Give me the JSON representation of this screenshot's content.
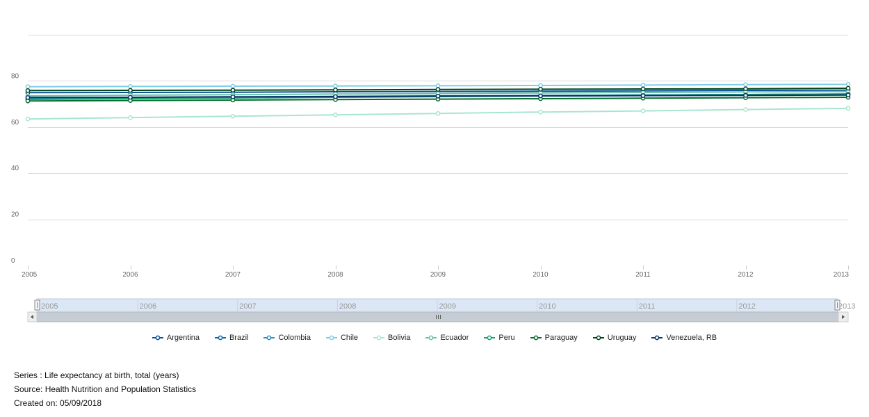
{
  "chart_data": {
    "type": "line",
    "x": [
      "2005",
      "2006",
      "2007",
      "2008",
      "2009",
      "2010",
      "2011",
      "2012",
      "2013"
    ],
    "ylim": [
      0,
      100
    ],
    "yticks": [
      0,
      20,
      40,
      60,
      80
    ],
    "grid": true,
    "legend_position": "bottom",
    "series": [
      {
        "name": "Argentina",
        "color": "#08519c",
        "values": [
          74.9,
          75.0,
          75.1,
          75.3,
          75.4,
          75.5,
          75.7,
          75.9,
          76.0
        ]
      },
      {
        "name": "Brazil",
        "color": "#0868ac",
        "values": [
          72.1,
          72.4,
          72.7,
          73.0,
          73.3,
          73.6,
          73.9,
          74.1,
          74.3
        ]
      },
      {
        "name": "Colombia",
        "color": "#2b8cbe",
        "values": [
          72.6,
          72.8,
          73.0,
          73.3,
          73.5,
          73.7,
          73.9,
          74.1,
          74.3
        ]
      },
      {
        "name": "Chile",
        "color": "#7fcdea",
        "values": [
          77.5,
          77.6,
          77.7,
          77.8,
          77.9,
          78.0,
          78.2,
          78.4,
          78.5
        ]
      },
      {
        "name": "Bolivia",
        "color": "#a8e6cf",
        "values": [
          63.5,
          64.1,
          64.7,
          65.3,
          65.9,
          66.5,
          67.0,
          67.6,
          68.1
        ]
      },
      {
        "name": "Ecuador",
        "color": "#66c2a4",
        "values": [
          73.5,
          73.8,
          74.0,
          74.3,
          74.5,
          74.8,
          75.0,
          75.2,
          75.4
        ]
      },
      {
        "name": "Peru",
        "color": "#1aa16b",
        "values": [
          72.0,
          72.3,
          72.6,
          72.9,
          73.2,
          73.5,
          73.7,
          74.0,
          74.2
        ]
      },
      {
        "name": "Paraguay",
        "color": "#006d2c",
        "values": [
          71.3,
          71.5,
          71.7,
          71.9,
          72.1,
          72.3,
          72.5,
          72.7,
          72.9
        ]
      },
      {
        "name": "Uruguay",
        "color": "#00441b",
        "values": [
          75.8,
          75.9,
          76.0,
          76.1,
          76.3,
          76.4,
          76.5,
          76.6,
          76.8
        ]
      },
      {
        "name": "Venezuela, RB",
        "color": "#08306b",
        "values": [
          72.8,
          72.9,
          73.1,
          73.2,
          73.4,
          73.5,
          73.6,
          73.7,
          73.9
        ]
      }
    ]
  },
  "navigator": {
    "labels": [
      "2005",
      "2006",
      "2007",
      "2008",
      "2009",
      "2010",
      "2011",
      "2012",
      "2013"
    ]
  },
  "footer": {
    "series": "Series : Life expectancy at birth, total (years)",
    "source": "Source: Health Nutrition and Population Statistics",
    "created": "Created on: 05/09/2018"
  }
}
